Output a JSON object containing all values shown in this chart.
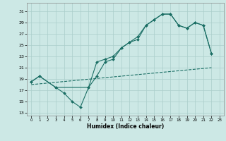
{
  "xlabel": "Humidex (Indice chaleur)",
  "bg_color": "#cce8e5",
  "grid_color": "#aaceca",
  "line_color": "#1a6e64",
  "xlim": [
    -0.5,
    23.5
  ],
  "ylim": [
    12.5,
    32.5
  ],
  "yticks": [
    13,
    15,
    17,
    19,
    21,
    23,
    25,
    27,
    29,
    31
  ],
  "xticks": [
    0,
    1,
    2,
    3,
    4,
    5,
    6,
    7,
    8,
    9,
    10,
    11,
    12,
    13,
    14,
    15,
    16,
    17,
    18,
    19,
    20,
    21,
    22,
    23
  ],
  "line1_x": [
    0,
    1,
    3,
    4,
    5,
    6,
    7,
    8,
    9,
    10,
    11,
    12,
    13,
    14,
    15,
    16,
    17,
    18,
    19,
    20,
    21,
    22
  ],
  "line1_y": [
    18.5,
    19.5,
    17.5,
    16.5,
    15.0,
    14.0,
    17.5,
    19.5,
    22.0,
    22.5,
    24.5,
    25.5,
    26.0,
    28.5,
    29.5,
    30.5,
    30.5,
    28.5,
    28.0,
    29.0,
    28.5,
    23.5
  ],
  "line2_x": [
    0,
    1,
    3,
    7,
    8,
    9,
    10,
    11,
    12,
    13,
    14,
    15,
    16,
    17,
    18,
    19,
    20,
    21,
    22
  ],
  "line2_y": [
    18.5,
    19.5,
    17.5,
    17.5,
    22.0,
    22.5,
    23.0,
    24.5,
    25.5,
    26.5,
    28.5,
    29.5,
    30.5,
    30.5,
    28.5,
    28.0,
    29.0,
    28.5,
    23.5
  ],
  "line3_x": [
    0,
    22
  ],
  "line3_y": [
    18.0,
    21.0
  ]
}
